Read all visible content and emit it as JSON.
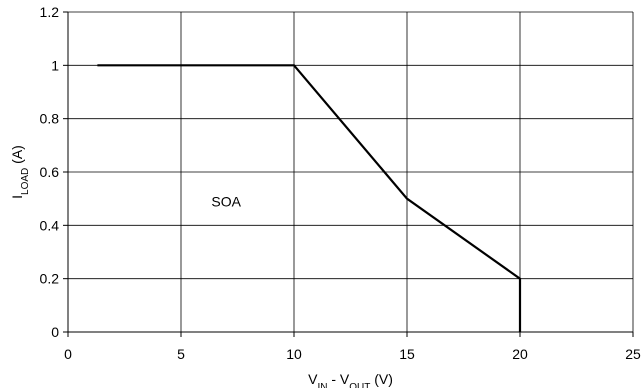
{
  "chart_data": {
    "type": "line",
    "title": "",
    "xlabel": {
      "parts": [
        {
          "text": "V",
          "sub": false
        },
        {
          "text": "IN",
          "sub": true
        },
        {
          "text": " - V",
          "sub": false
        },
        {
          "text": "OUT",
          "sub": true
        },
        {
          "text": " (V)",
          "sub": false
        }
      ]
    },
    "ylabel": {
      "parts": [
        {
          "text": "I",
          "sub": false
        },
        {
          "text": "LOAD",
          "sub": true
        },
        {
          "text": " (A)",
          "sub": false
        }
      ]
    },
    "xlim": [
      0,
      25
    ],
    "ylim": [
      0,
      1.2
    ],
    "x_ticks": [
      0,
      5,
      10,
      15,
      20,
      25
    ],
    "x_tick_labels": [
      "0",
      "5",
      "10",
      "15",
      "20",
      "25"
    ],
    "y_ticks": [
      0,
      0.2,
      0.4,
      0.6,
      0.8,
      1,
      1.2
    ],
    "y_tick_labels": [
      "0",
      "0.2",
      "0.4",
      "0.6",
      "0.8",
      "1",
      "1.2"
    ],
    "grid": true,
    "series": [
      {
        "x": [
          1.3,
          10,
          15,
          20,
          20
        ],
        "y": [
          1,
          1,
          0.5,
          0.2,
          0
        ],
        "color": "#000000"
      }
    ],
    "annotations": [
      {
        "text": "SOA",
        "x": 7,
        "y": 0.47
      }
    ]
  }
}
